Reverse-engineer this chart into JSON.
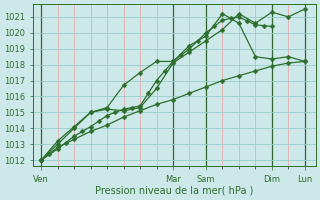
{
  "xlabel": "Pression niveau de la mer( hPa )",
  "bg_color": "#cce8e8",
  "grid_h_color": "#99cccc",
  "grid_v_minor_color": "#e8a0a0",
  "grid_v_major_color": "#336633",
  "line_color": "#2d6e2d",
  "ylim": [
    1011.6,
    1021.8
  ],
  "yticks": [
    1012,
    1013,
    1014,
    1015,
    1016,
    1017,
    1018,
    1019,
    1020,
    1021
  ],
  "day_labels": [
    "Ven",
    "Mar",
    "Sam",
    "Dim",
    "Lun"
  ],
  "day_positions_x": [
    0,
    48,
    60,
    84,
    96
  ],
  "xlim": [
    -3,
    100
  ],
  "x_step": 6,
  "series1_x": [
    0,
    3,
    6,
    9,
    12,
    15,
    18,
    21,
    24,
    27,
    30,
    33,
    36,
    39,
    42,
    45,
    48,
    51,
    54,
    57,
    60,
    63,
    66,
    69,
    72,
    75,
    78,
    81,
    84,
    87,
    90,
    93,
    96
  ],
  "series1_y": [
    1012.0,
    1012.35,
    1012.7,
    1013.1,
    1013.5,
    1013.8,
    1014.1,
    1014.45,
    1014.8,
    1015.0,
    1015.2,
    1015.3,
    1015.4,
    1016.2,
    1017.0,
    1017.6,
    1018.2,
    1018.6,
    1019.0,
    1019.5,
    1020.0,
    1020.4,
    1020.8,
    1020.9,
    1021.0,
    1020.75,
    1020.5,
    1020.45,
    1020.4,
    null,
    null,
    null,
    null
  ],
  "series2_x": [
    0,
    6,
    12,
    18,
    24,
    30,
    36,
    42,
    48,
    54,
    60,
    66,
    72,
    78,
    84,
    90,
    96
  ],
  "series2_y": [
    1012.0,
    1013.0,
    1014.0,
    1015.0,
    1015.2,
    1015.1,
    1015.3,
    1016.5,
    1018.1,
    1018.8,
    1019.5,
    1020.2,
    1021.2,
    1020.6,
    1021.3,
    1021.0,
    1021.5
  ],
  "series3_x": [
    0,
    6,
    12,
    18,
    24,
    30,
    36,
    42,
    48,
    54,
    60,
    66,
    72,
    78,
    84,
    90,
    96
  ],
  "series3_y": [
    1012.0,
    1013.2,
    1014.1,
    1015.0,
    1015.3,
    1016.7,
    1017.5,
    1018.2,
    1018.2,
    1019.2,
    1019.8,
    1021.2,
    1020.6,
    1018.5,
    1018.35,
    1018.5,
    1018.2
  ],
  "series4_x": [
    0,
    6,
    12,
    18,
    24,
    30,
    36,
    42,
    48,
    54,
    60,
    66,
    72,
    78,
    84,
    90,
    96
  ],
  "series4_y": [
    1012.0,
    1012.8,
    1013.3,
    1013.8,
    1014.2,
    1014.7,
    1015.1,
    1015.5,
    1015.8,
    1016.2,
    1016.6,
    1017.0,
    1017.3,
    1017.6,
    1017.9,
    1018.1,
    1018.2
  ],
  "marker_size": 2.5,
  "linewidth": 0.9
}
